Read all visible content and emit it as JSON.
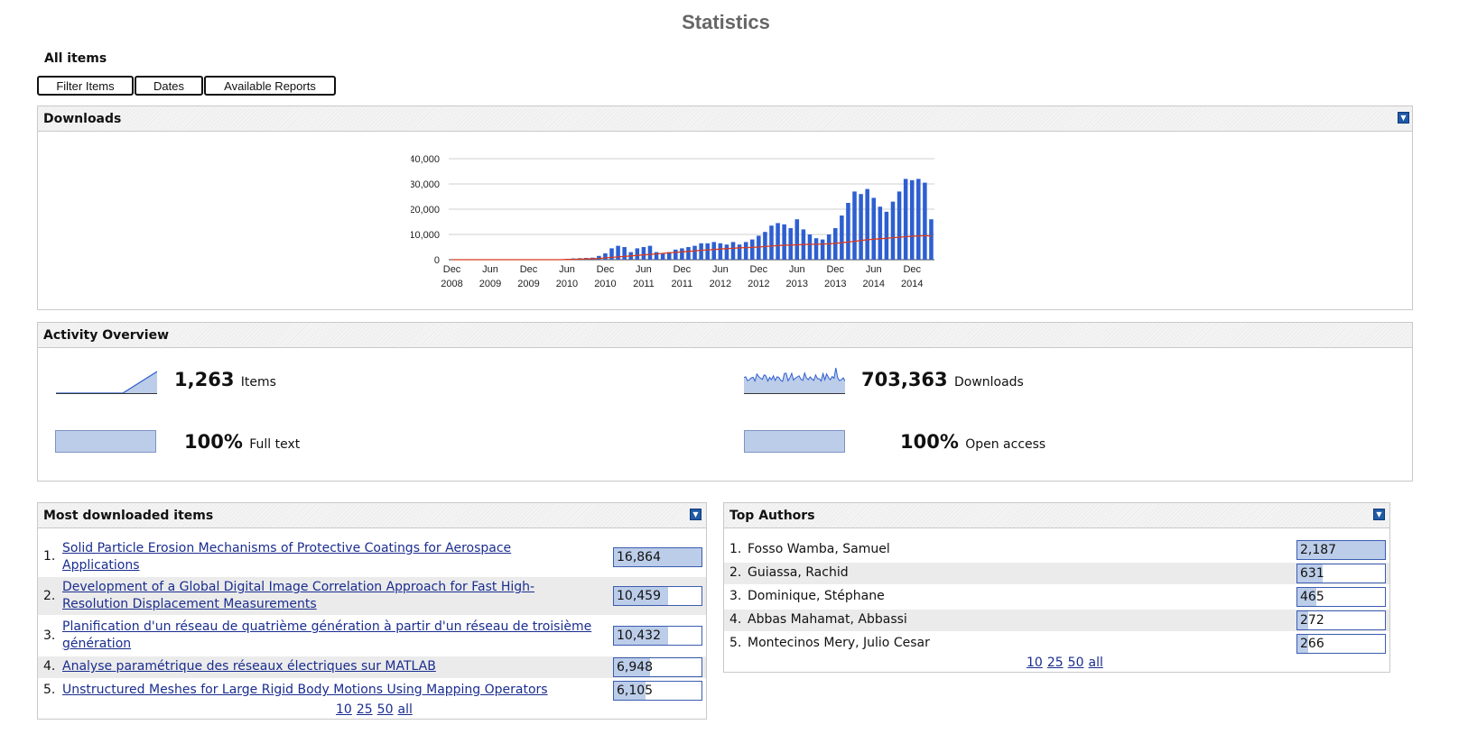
{
  "page": {
    "title": "Statistics",
    "subtitle": "All items",
    "buttons": [
      "Filter Items",
      "Dates",
      "Available Reports"
    ]
  },
  "downloads_panel": {
    "title": "Downloads"
  },
  "chart_data": {
    "type": "bar",
    "title": "",
    "xlabel": "",
    "ylabel": "",
    "ylim": [
      0,
      40000
    ],
    "yticks": [
      "40,000",
      "30,000",
      "20,000",
      "10,000",
      "0"
    ],
    "xtick_labels": [
      [
        "Dec",
        "2008"
      ],
      [
        "Jun",
        "2009"
      ],
      [
        "Dec",
        "2009"
      ],
      [
        "Jun",
        "2010"
      ],
      [
        "Dec",
        "2010"
      ],
      [
        "Jun",
        "2011"
      ],
      [
        "Dec",
        "2011"
      ],
      [
        "Jun",
        "2012"
      ],
      [
        "Dec",
        "2012"
      ],
      [
        "Jun",
        "2013"
      ],
      [
        "Dec",
        "2013"
      ],
      [
        "Jun",
        "2014"
      ],
      [
        "Dec",
        "2014"
      ]
    ],
    "series": [
      {
        "type": "bar",
        "color": "#2e5fd1",
        "values": [
          0,
          0,
          0,
          0,
          0,
          0,
          0,
          0,
          0,
          0,
          0,
          0,
          0,
          0,
          0,
          0,
          0,
          0,
          300,
          500,
          600,
          700,
          800,
          1500,
          2500,
          4500,
          5500,
          5000,
          3000,
          4500,
          5000,
          5500,
          3000,
          2500,
          3000,
          4000,
          4500,
          5000,
          5500,
          6500,
          6500,
          7000,
          6500,
          6000,
          7000,
          6000,
          7000,
          8000,
          9500,
          11000,
          13500,
          14500,
          14000,
          12500,
          16000,
          12000,
          10000,
          8500,
          8000,
          10000,
          12500,
          17500,
          22500,
          27000,
          26000,
          28000,
          24500,
          21000,
          19000,
          23000,
          27000,
          32000,
          31500,
          32000,
          30500,
          16000
        ]
      },
      {
        "type": "line",
        "color": "#d93b1f",
        "values": [
          0,
          0,
          0,
          0,
          0,
          0,
          0,
          0,
          0,
          0,
          0,
          0,
          0,
          0,
          0,
          0,
          0,
          0,
          100,
          150,
          200,
          300,
          400,
          500,
          700,
          900,
          1100,
          1300,
          1500,
          1700,
          1900,
          2100,
          2300,
          2500,
          2700,
          2900,
          3100,
          3300,
          3500,
          3700,
          3900,
          4000,
          4200,
          4400,
          4500,
          4700,
          4800,
          4900,
          5000,
          5200,
          5400,
          5600,
          5700,
          5800,
          5900,
          6000,
          6100,
          6100,
          6200,
          6300,
          6500,
          6700,
          7000,
          7300,
          7600,
          7900,
          8100,
          8300,
          8500,
          8700,
          8900,
          9100,
          9300,
          9400,
          9500,
          9400
        ]
      }
    ]
  },
  "activity": {
    "title": "Activity Overview",
    "items_count": "1,263",
    "items_label": "Items",
    "downloads_count": "703,363",
    "downloads_label": "Downloads",
    "fulltext_pct": "100%",
    "fulltext_label": "Full text",
    "openaccess_pct": "100%",
    "openaccess_label": "Open access"
  },
  "most_downloaded": {
    "title": "Most downloaded items",
    "max": 16864,
    "rows": [
      {
        "rank": "1.",
        "line1": "Solid Particle Erosion Mechanisms of Protective Coatings for Aerospace",
        "line2": "Applications",
        "value": "16,864",
        "num": 16864
      },
      {
        "rank": "2.",
        "line1": "Development of a Global Digital Image Correlation Approach for Fast High-",
        "line2": "Resolution Displacement Measurements",
        "value": "10,459",
        "num": 10459
      },
      {
        "rank": "3.",
        "line1": "Planification d'un réseau de quatrième génération à partir d'un réseau de troisième",
        "line2": "génération",
        "value": "10,432",
        "num": 10432
      },
      {
        "rank": "4.",
        "line1": "Analyse paramétrique des réseaux électriques sur MATLAB",
        "line2": "",
        "value": "6,948",
        "num": 6948
      },
      {
        "rank": "5.",
        "line1": "Unstructured Meshes for Large Rigid Body Motions Using Mapping Operators",
        "line2": "",
        "value": "6,105",
        "num": 6105
      }
    ],
    "pager": [
      "10",
      "25",
      "50",
      "all"
    ]
  },
  "top_authors": {
    "title": "Top Authors",
    "max": 2187,
    "rows": [
      {
        "rank": "1.",
        "name": "Fosso Wamba, Samuel",
        "value": "2,187",
        "num": 2187
      },
      {
        "rank": "2.",
        "name": "Guiassa, Rachid",
        "value": "631",
        "num": 631
      },
      {
        "rank": "3.",
        "name": "Dominique, Stéphane",
        "value": "465",
        "num": 465
      },
      {
        "rank": "4.",
        "name": "Abbas Mahamat, Abbassi",
        "value": "272",
        "num": 272
      },
      {
        "rank": "5.",
        "name": "Montecinos Mery, Julio Cesar",
        "value": "266",
        "num": 266
      }
    ],
    "pager": [
      "10",
      "25",
      "50",
      "all"
    ]
  }
}
